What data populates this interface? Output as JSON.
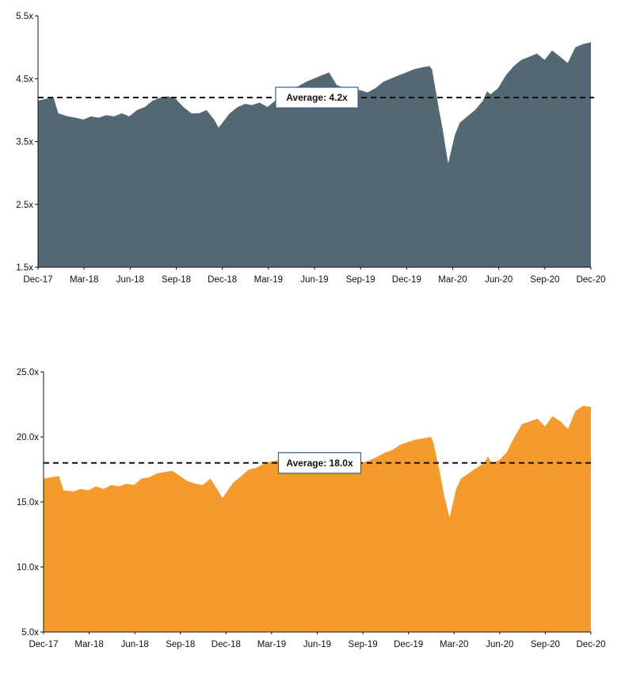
{
  "chart_data": [
    {
      "type": "area",
      "title": "",
      "xlabel": "",
      "ylabel": "",
      "ylim": [
        1.5,
        5.5
      ],
      "y_ticks": [
        "1.5x",
        "2.5x",
        "3.5x",
        "4.5x",
        "5.5x"
      ],
      "y_tick_values": [
        1.5,
        2.5,
        3.5,
        4.5,
        5.5
      ],
      "x_ticks": [
        "Dec-17",
        "Mar-18",
        "Jun-18",
        "Sep-18",
        "Dec-18",
        "Mar-19",
        "Jun-19",
        "Sep-19",
        "Dec-19",
        "Mar-20",
        "Jun-20",
        "Sep-20",
        "Dec-20"
      ],
      "grid": false,
      "fill_color": "#536872",
      "average": {
        "value": 4.2,
        "label": "Average: 4.2x"
      },
      "series": [
        {
          "x": [
            "2017-12-31",
            "2018-01-15",
            "2018-01-31",
            "2018-02-09",
            "2018-02-28",
            "2018-03-15",
            "2018-03-31",
            "2018-04-15",
            "2018-04-30",
            "2018-05-15",
            "2018-05-31",
            "2018-06-15",
            "2018-06-30",
            "2018-07-15",
            "2018-07-31",
            "2018-08-15",
            "2018-08-31",
            "2018-09-15",
            "2018-09-30",
            "2018-10-15",
            "2018-10-31",
            "2018-11-15",
            "2018-11-30",
            "2018-12-15",
            "2018-12-24",
            "2019-01-15",
            "2019-01-31",
            "2019-02-15",
            "2019-02-28",
            "2019-03-15",
            "2019-03-31",
            "2019-04-15",
            "2019-04-30",
            "2019-05-15",
            "2019-05-31",
            "2019-06-15",
            "2019-06-30",
            "2019-07-15",
            "2019-07-31",
            "2019-08-15",
            "2019-08-31",
            "2019-09-15",
            "2019-09-30",
            "2019-10-15",
            "2019-10-31",
            "2019-11-15",
            "2019-11-30",
            "2019-12-15",
            "2019-12-31",
            "2020-01-15",
            "2020-01-31",
            "2020-02-15",
            "2020-02-20",
            "2020-03-05",
            "2020-03-12",
            "2020-03-23",
            "2020-04-05",
            "2020-04-15",
            "2020-04-30",
            "2020-05-15",
            "2020-05-31",
            "2020-06-08",
            "2020-06-15",
            "2020-06-30",
            "2020-07-15",
            "2020-07-31",
            "2020-08-15",
            "2020-08-31",
            "2020-09-15",
            "2020-09-30",
            "2020-10-15",
            "2020-10-31",
            "2020-11-15",
            "2020-11-30",
            "2020-12-15",
            "2020-12-31"
          ],
          "values": [
            4.15,
            4.18,
            4.2,
            3.95,
            3.9,
            3.88,
            3.85,
            3.9,
            3.88,
            3.92,
            3.9,
            3.95,
            3.9,
            4.0,
            4.05,
            4.15,
            4.2,
            4.22,
            4.18,
            4.05,
            3.95,
            3.95,
            4.0,
            3.85,
            3.72,
            3.95,
            4.05,
            4.1,
            4.08,
            4.12,
            4.05,
            4.15,
            4.2,
            4.35,
            4.38,
            4.45,
            4.5,
            4.55,
            4.6,
            4.4,
            4.35,
            4.3,
            4.32,
            4.28,
            4.35,
            4.45,
            4.5,
            4.55,
            4.6,
            4.65,
            4.68,
            4.7,
            4.65,
            4.0,
            3.7,
            3.15,
            3.6,
            3.8,
            3.9,
            4.0,
            4.15,
            4.3,
            4.25,
            4.35,
            4.55,
            4.7,
            4.8,
            4.85,
            4.9,
            4.8,
            4.95,
            4.85,
            4.75,
            5.0,
            5.05,
            5.08
          ]
        }
      ]
    },
    {
      "type": "area",
      "title": "",
      "xlabel": "",
      "ylabel": "",
      "ylim": [
        5.0,
        25.0
      ],
      "y_ticks": [
        "5.0x",
        "10.0x",
        "15.0x",
        "20.0x",
        "25.0x"
      ],
      "y_tick_values": [
        5.0,
        10.0,
        15.0,
        20.0,
        25.0
      ],
      "x_ticks": [
        "Dec-17",
        "Mar-18",
        "Jun-18",
        "Sep-18",
        "Dec-18",
        "Mar-19",
        "Jun-19",
        "Sep-19",
        "Dec-19",
        "Mar-20",
        "Jun-20",
        "Sep-20",
        "Dec-20"
      ],
      "grid": false,
      "fill_color": "#F59A2C",
      "average": {
        "value": 18.0,
        "label": "Average: 18.0x"
      },
      "series": [
        {
          "x": [
            "2017-12-31",
            "2018-01-15",
            "2018-01-31",
            "2018-02-09",
            "2018-02-28",
            "2018-03-15",
            "2018-03-31",
            "2018-04-15",
            "2018-04-30",
            "2018-05-15",
            "2018-05-31",
            "2018-06-15",
            "2018-06-30",
            "2018-07-15",
            "2018-07-31",
            "2018-08-15",
            "2018-08-31",
            "2018-09-15",
            "2018-09-30",
            "2018-10-15",
            "2018-10-31",
            "2018-11-15",
            "2018-11-30",
            "2018-12-15",
            "2018-12-24",
            "2019-01-15",
            "2019-01-31",
            "2019-02-15",
            "2019-02-28",
            "2019-03-15",
            "2019-03-31",
            "2019-04-15",
            "2019-04-30",
            "2019-05-15",
            "2019-05-31",
            "2019-06-15",
            "2019-06-30",
            "2019-07-15",
            "2019-07-31",
            "2019-08-15",
            "2019-08-31",
            "2019-09-15",
            "2019-09-30",
            "2019-10-15",
            "2019-10-31",
            "2019-11-15",
            "2019-11-30",
            "2019-12-15",
            "2019-12-31",
            "2020-01-15",
            "2020-01-31",
            "2020-02-15",
            "2020-02-20",
            "2020-03-05",
            "2020-03-12",
            "2020-03-23",
            "2020-04-05",
            "2020-04-15",
            "2020-04-30",
            "2020-05-15",
            "2020-05-31",
            "2020-06-08",
            "2020-06-15",
            "2020-06-30",
            "2020-07-15",
            "2020-07-31",
            "2020-08-15",
            "2020-08-31",
            "2020-09-15",
            "2020-09-30",
            "2020-10-15",
            "2020-10-31",
            "2020-11-15",
            "2020-11-30",
            "2020-12-15",
            "2020-12-31"
          ],
          "values": [
            16.8,
            16.9,
            17.0,
            15.9,
            15.8,
            16.0,
            15.9,
            16.2,
            16.0,
            16.3,
            16.2,
            16.4,
            16.3,
            16.8,
            16.9,
            17.2,
            17.3,
            17.4,
            17.0,
            16.6,
            16.4,
            16.3,
            16.8,
            15.9,
            15.3,
            16.5,
            17.0,
            17.5,
            17.6,
            17.9,
            18.1,
            18.2,
            18.3,
            17.8,
            17.5,
            17.8,
            18.0,
            18.1,
            18.3,
            18.2,
            18.0,
            18.1,
            18.0,
            18.2,
            18.5,
            18.8,
            19.0,
            19.4,
            19.6,
            19.8,
            19.9,
            20.0,
            19.5,
            17.0,
            15.5,
            13.8,
            16.0,
            16.8,
            17.2,
            17.6,
            18.0,
            18.5,
            18.0,
            18.2,
            18.8,
            20.0,
            21.0,
            21.2,
            21.4,
            20.8,
            21.6,
            21.2,
            20.6,
            22.0,
            22.4,
            22.3
          ]
        }
      ]
    }
  ]
}
